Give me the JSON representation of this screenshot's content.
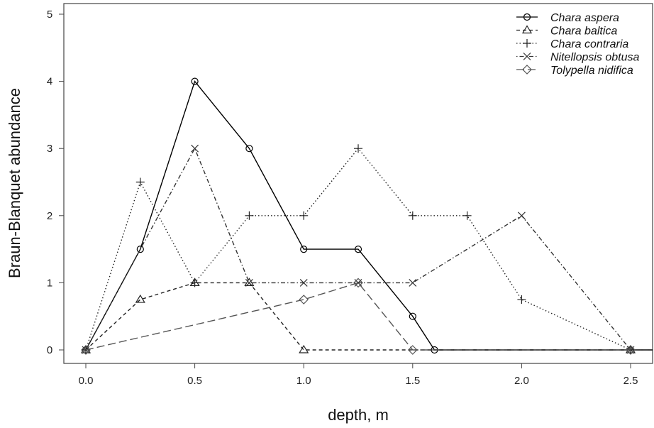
{
  "chart_data": {
    "type": "line",
    "title": "",
    "xlabel": "depth, m",
    "ylabel": "Braun-Blanquet abundance",
    "xlim": [
      -0.1,
      2.6
    ],
    "ylim": [
      -0.2,
      5.07
    ],
    "xticks": [
      0.0,
      0.5,
      1.0,
      1.5,
      2.0,
      2.5
    ],
    "xtick_labels": [
      "0.0",
      "0.5",
      "1.0",
      "1.5",
      "2.0",
      "2.5"
    ],
    "yticks": [
      0,
      1,
      2,
      3,
      4,
      5
    ],
    "ytick_labels": [
      "0",
      "1",
      "2",
      "3",
      "4",
      "5"
    ],
    "grid": false,
    "legend_position": "top-right",
    "series": [
      {
        "name": "Chara aspera",
        "marker": "circle",
        "line": "solid",
        "color": "#000000",
        "x": [
          0,
          0.25,
          0.5,
          0.75,
          1.0,
          1.25,
          1.5,
          1.6,
          2.5
        ],
        "y": [
          0,
          1.5,
          4,
          3,
          1.5,
          1.5,
          0.5,
          0,
          0
        ]
      },
      {
        "name": "Chara baltica",
        "marker": "triangle",
        "line": "dashed",
        "color": "#222222",
        "x": [
          0,
          0.25,
          0.5,
          0.75,
          1.0,
          2.5
        ],
        "y": [
          0,
          0.75,
          1,
          1,
          0,
          0
        ]
      },
      {
        "name": "Chara contraria",
        "marker": "plus",
        "line": "dotted",
        "color": "#222222",
        "x": [
          0,
          0.25,
          0.5,
          0.75,
          1.0,
          1.25,
          1.5,
          1.75,
          2.0,
          2.5
        ],
        "y": [
          0,
          2.5,
          1,
          2,
          2,
          3,
          2,
          2,
          0.75,
          0
        ]
      },
      {
        "name": "Nitellopsis obtusa",
        "marker": "cross",
        "line": "dotdash",
        "color": "#333333",
        "x": [
          0,
          0.5,
          0.75,
          1.0,
          1.25,
          1.5,
          2.0,
          2.5
        ],
        "y": [
          0,
          3,
          1,
          1,
          1,
          1,
          2,
          0
        ]
      },
      {
        "name": "Tolypella nidifica",
        "marker": "diamond",
        "line": "longdash",
        "color": "#555555",
        "x": [
          0,
          1.0,
          1.25,
          1.5,
          2.5
        ],
        "y": [
          0,
          0.75,
          1,
          0,
          0
        ]
      }
    ]
  }
}
